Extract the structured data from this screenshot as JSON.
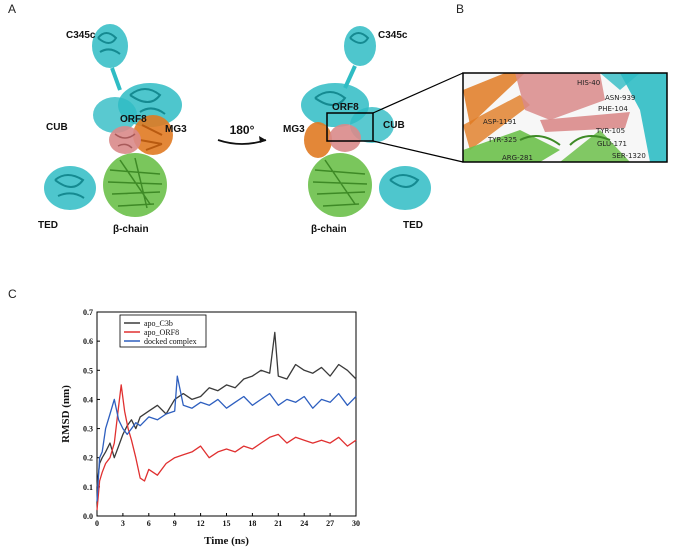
{
  "panels": {
    "a": "A",
    "b": "B",
    "c": "C"
  },
  "panel_a": {
    "left": {
      "c345c": "C345c",
      "cub": "CUB",
      "orf8": "ORF8",
      "mg3": "MG3",
      "ted": "TED",
      "beta_chain": "β-chain"
    },
    "rotation": "180°",
    "right": {
      "c345c": "C345c",
      "cub": "CUB",
      "orf8": "ORF8",
      "mg3": "MG3",
      "ted": "TED",
      "beta_chain": "β-chain"
    }
  },
  "panel_b": {
    "residues": [
      "HIS-40",
      "ASN-939",
      "PHE-104",
      "ASP-1191",
      "TYR-325",
      "ARG-281",
      "TYR-105",
      "GLU-171",
      "SER-1320"
    ]
  },
  "colors": {
    "cyan": "#2fbcc4",
    "orange": "#e07a22",
    "green": "#6cc04a",
    "pink": "#d98a8a",
    "apo_c3b": "#3a3a3a",
    "apo_orf8": "#e03030",
    "docked": "#2e5fbf"
  },
  "chart_data": {
    "type": "line",
    "xlabel": "Time (ns)",
    "ylabel": "RMSD (nm)",
    "xlim": [
      0,
      30
    ],
    "ylim": [
      0.0,
      0.7
    ],
    "x_ticks": [
      "0",
      "3",
      "6",
      "9",
      "12",
      "15",
      "18",
      "21",
      "24",
      "27",
      "30"
    ],
    "y_ticks": [
      "0.0",
      "0.1",
      "0.2",
      "0.3",
      "0.4",
      "0.5",
      "0.6",
      "0.7"
    ],
    "legend_position": "top-left",
    "series": [
      {
        "name": "apo_C3b",
        "color": "#3a3a3a",
        "x": [
          0,
          0.3,
          0.6,
          1,
          1.5,
          2,
          2.5,
          3,
          3.5,
          4,
          4.5,
          5,
          6,
          7,
          8,
          9,
          10,
          11,
          12,
          13,
          14,
          15,
          16,
          17,
          18,
          19,
          20,
          20.6,
          21,
          22,
          23,
          24,
          25,
          26,
          27,
          28,
          29,
          30
        ],
        "y": [
          0.1,
          0.18,
          0.2,
          0.22,
          0.25,
          0.2,
          0.24,
          0.28,
          0.31,
          0.33,
          0.3,
          0.34,
          0.36,
          0.38,
          0.35,
          0.4,
          0.42,
          0.4,
          0.41,
          0.44,
          0.43,
          0.45,
          0.44,
          0.47,
          0.48,
          0.5,
          0.49,
          0.63,
          0.48,
          0.47,
          0.52,
          0.5,
          0.49,
          0.51,
          0.48,
          0.52,
          0.5,
          0.47
        ]
      },
      {
        "name": "apo_ORF8",
        "color": "#e03030",
        "x": [
          0,
          0.3,
          0.6,
          1,
          1.5,
          2,
          2.4,
          2.8,
          3.2,
          3.6,
          4,
          4.5,
          5,
          5.5,
          6,
          7,
          8,
          9,
          10,
          11,
          12,
          13,
          14,
          15,
          16,
          17,
          18,
          19,
          20,
          21,
          22,
          23,
          24,
          25,
          26,
          27,
          28,
          29,
          30
        ],
        "y": [
          0.02,
          0.12,
          0.15,
          0.18,
          0.2,
          0.25,
          0.35,
          0.45,
          0.36,
          0.3,
          0.26,
          0.2,
          0.13,
          0.12,
          0.16,
          0.14,
          0.18,
          0.2,
          0.21,
          0.22,
          0.24,
          0.2,
          0.22,
          0.23,
          0.22,
          0.24,
          0.23,
          0.25,
          0.27,
          0.28,
          0.25,
          0.27,
          0.26,
          0.25,
          0.26,
          0.25,
          0.27,
          0.24,
          0.26
        ]
      },
      {
        "name": "docked complex",
        "color": "#2e5fbf",
        "x": [
          0,
          0.3,
          0.6,
          1,
          1.5,
          2,
          2.5,
          3,
          3.5,
          4,
          4.5,
          5,
          6,
          7,
          8,
          9,
          9.3,
          10,
          11,
          12,
          13,
          14,
          15,
          16,
          17,
          18,
          19,
          20,
          21,
          22,
          23,
          24,
          25,
          26,
          27,
          28,
          29,
          30
        ],
        "y": [
          0.05,
          0.2,
          0.22,
          0.3,
          0.35,
          0.4,
          0.33,
          0.3,
          0.28,
          0.3,
          0.32,
          0.31,
          0.34,
          0.33,
          0.35,
          0.36,
          0.48,
          0.38,
          0.37,
          0.39,
          0.38,
          0.4,
          0.37,
          0.39,
          0.41,
          0.38,
          0.4,
          0.42,
          0.38,
          0.4,
          0.39,
          0.41,
          0.37,
          0.4,
          0.39,
          0.42,
          0.38,
          0.41
        ]
      }
    ]
  }
}
